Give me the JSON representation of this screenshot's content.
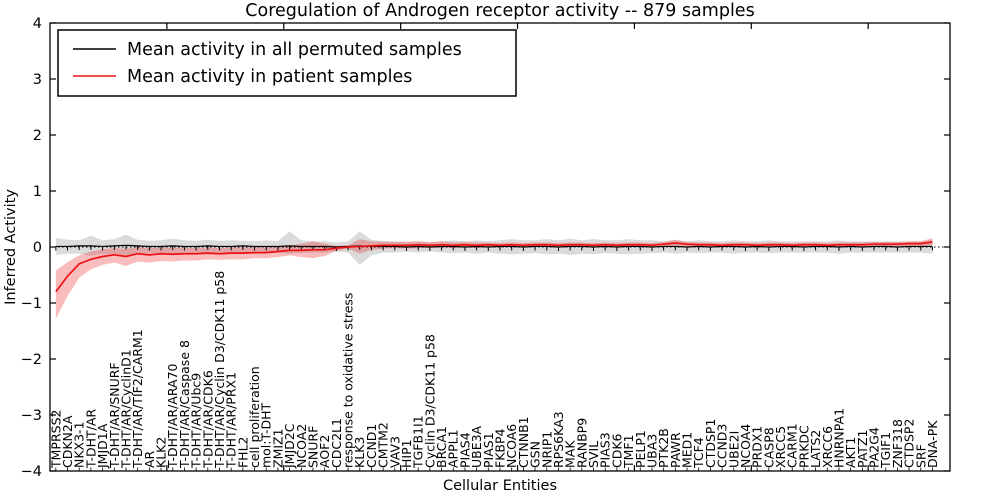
{
  "title": "Coregulation of Androgen receptor activity -- 879 samples",
  "axes": {
    "xlabel": "Cellular Entities",
    "ylabel": "Inferred Activity",
    "yticks": [
      4,
      3,
      2,
      1,
      0,
      -1,
      -2,
      -3,
      -4
    ],
    "ylim": [
      -4,
      4
    ]
  },
  "legend": {
    "entries": [
      {
        "label": "Mean activity in all permuted samples",
        "color": "#000000"
      },
      {
        "label": "Mean activity in patient samples",
        "color": "#ee1111"
      }
    ],
    "position": "upper left"
  },
  "chart_data": {
    "type": "line",
    "title": "Coregulation of Androgen receptor activity -- 879 samples",
    "xlabel": "Cellular Entities",
    "ylabel": "Inferred Activity",
    "ylim": [
      -4,
      4
    ],
    "grid": false,
    "zero_line_dotted": true,
    "legend_position": "upper left",
    "categories": [
      "TMPRSS2",
      "CDKN2A",
      "NKX3-1",
      "T-DHT/AR",
      "JMJD1A",
      "T-DHT/AR/SNURF",
      "T-DHT/AR/CyclinD1",
      "T-DHT/AR/TIF2/CARM1",
      "AR",
      "KLK2",
      "T-DHT/AR/ARA70",
      "T-DHT/AR/Caspase 8",
      "T-DHT/AR/Ubc9",
      "T-DHT/AR/CDK6",
      "T-DHT/AR/Cyclin D3/CDK11 p58",
      "T-DHT/AR/PRX1",
      "FHL2",
      "cell proliferation",
      "mol:T-DHT",
      "ZMIZ1",
      "JMJD2C",
      "NCOA2",
      "SNURF",
      "AOF2",
      "CDC2L1",
      "response to oxidative stress",
      "KLK3",
      "CCND1",
      "CMTM2",
      "VAV3",
      "HIP1",
      "TGFB1I1",
      "Cyclin D3/CDK11 p58",
      "BRCA1",
      "APPL1",
      "PIAS4",
      "UBE3A",
      "PIAS1",
      "FKBP4",
      "NCOA6",
      "CTNNB1",
      "GSN",
      "NRIP1",
      "RPS6KA3",
      "MAK",
      "RANBP9",
      "SVIL",
      "PIAS3",
      "CDK6",
      "TMF1",
      "PELP1",
      "UBA3",
      "PTK2B",
      "PAWR",
      "MED1",
      "TCF4",
      "CTDSP1",
      "CCND3",
      "UBE2I",
      "NCOA4",
      "PRDX1",
      "CASP8",
      "XRCC5",
      "CARM1",
      "PRKDC",
      "LATS2",
      "XRCC6",
      "HNRNPA1",
      "AKT1",
      "PATZ1",
      "PA2G4",
      "TGIF1",
      "ZNF318",
      "CTDSP2",
      "SRF",
      "DNA-PK"
    ],
    "series": [
      {
        "name": "Mean activity in all permuted samples",
        "color": "#000000",
        "band_color": "rgba(0,0,0,0.14)",
        "values": [
          0.01,
          0.01,
          0.02,
          0.02,
          0.01,
          0.02,
          0.03,
          0.02,
          0.01,
          0.01,
          0.02,
          0.01,
          0.01,
          0.02,
          0.01,
          0.01,
          0.02,
          0.01,
          0.01,
          0.01,
          0.02,
          0.01,
          0.01,
          0.01,
          0.0,
          0.01,
          0.02,
          0.01,
          0.01,
          0.01,
          0.0,
          0.01,
          0.0,
          0.01,
          0.01,
          0.0,
          0.01,
          0.0,
          0.01,
          0.01,
          0.0,
          0.01,
          0.01,
          0.0,
          0.01,
          0.01,
          0.0,
          0.01,
          0.0,
          0.01,
          0.01,
          0.0,
          0.01,
          0.01,
          0.0,
          0.01,
          0.0,
          0.01,
          0.01,
          0.0,
          0.01,
          0.0,
          0.01,
          0.01,
          0.0,
          0.01,
          0.01,
          0.0,
          0.01,
          0.0,
          0.01,
          0.01,
          0.0,
          0.01,
          0.01,
          0.01
        ],
        "band_upper": [
          0.16,
          0.13,
          0.12,
          0.2,
          0.12,
          0.14,
          0.22,
          0.13,
          0.11,
          0.12,
          0.15,
          0.12,
          0.11,
          0.13,
          0.11,
          0.12,
          0.11,
          0.1,
          0.12,
          0.1,
          0.28,
          0.12,
          0.1,
          0.1,
          0.08,
          0.1,
          0.28,
          0.13,
          0.1,
          0.1,
          0.08,
          0.1,
          0.08,
          0.1,
          0.12,
          0.1,
          0.12,
          0.1,
          0.12,
          0.14,
          0.12,
          0.12,
          0.14,
          0.12,
          0.15,
          0.12,
          0.14,
          0.12,
          0.12,
          0.14,
          0.12,
          0.12,
          0.1,
          0.12,
          0.1,
          0.12,
          0.1,
          0.1,
          0.12,
          0.1,
          0.1,
          0.12,
          0.1,
          0.1,
          0.1,
          0.1,
          0.1,
          0.12,
          0.1,
          0.1,
          0.1,
          0.1,
          0.1,
          0.1,
          0.1,
          0.13
        ],
        "band_lower": [
          -0.14,
          -0.12,
          -0.12,
          -0.16,
          -0.12,
          -0.13,
          -0.18,
          -0.12,
          -0.1,
          -0.12,
          -0.13,
          -0.12,
          -0.1,
          -0.12,
          -0.1,
          -0.12,
          -0.1,
          -0.1,
          -0.11,
          -0.1,
          -0.12,
          -0.1,
          -0.1,
          -0.1,
          -0.08,
          -0.1,
          -0.32,
          -0.15,
          -0.1,
          -0.1,
          -0.08,
          -0.1,
          -0.08,
          -0.1,
          -0.11,
          -0.1,
          -0.12,
          -0.1,
          -0.12,
          -0.13,
          -0.12,
          -0.11,
          -0.13,
          -0.12,
          -0.14,
          -0.12,
          -0.13,
          -0.11,
          -0.12,
          -0.13,
          -0.12,
          -0.11,
          -0.1,
          -0.12,
          -0.1,
          -0.11,
          -0.1,
          -0.1,
          -0.12,
          -0.1,
          -0.1,
          -0.11,
          -0.1,
          -0.1,
          -0.1,
          -0.1,
          -0.1,
          -0.12,
          -0.1,
          -0.1,
          -0.1,
          -0.1,
          -0.1,
          -0.1,
          -0.1,
          -0.12
        ]
      },
      {
        "name": "Mean activity in patient samples",
        "color": "#ee1111",
        "band_color": "rgba(238,17,17,0.28)",
        "values": [
          -0.8,
          -0.52,
          -0.3,
          -0.22,
          -0.17,
          -0.14,
          -0.17,
          -0.12,
          -0.14,
          -0.12,
          -0.13,
          -0.12,
          -0.12,
          -0.11,
          -0.12,
          -0.11,
          -0.11,
          -0.1,
          -0.1,
          -0.08,
          -0.06,
          -0.06,
          -0.05,
          -0.05,
          -0.02,
          0.0,
          0.01,
          0.02,
          0.03,
          0.03,
          0.03,
          0.04,
          0.03,
          0.04,
          0.03,
          0.04,
          0.03,
          0.04,
          0.03,
          0.04,
          0.03,
          0.04,
          0.04,
          0.03,
          0.04,
          0.04,
          0.03,
          0.04,
          0.03,
          0.04,
          0.04,
          0.03,
          0.05,
          0.07,
          0.05,
          0.04,
          0.04,
          0.03,
          0.04,
          0.04,
          0.03,
          0.04,
          0.04,
          0.03,
          0.04,
          0.04,
          0.03,
          0.04,
          0.04,
          0.04,
          0.05,
          0.05,
          0.05,
          0.06,
          0.06,
          0.09
        ],
        "band_upper": [
          -0.42,
          -0.27,
          -0.15,
          -0.08,
          -0.04,
          -0.02,
          -0.03,
          0.0,
          -0.02,
          -0.01,
          -0.02,
          -0.01,
          -0.02,
          -0.01,
          -0.02,
          -0.01,
          -0.01,
          0.0,
          -0.01,
          0.01,
          0.02,
          0.06,
          0.1,
          0.06,
          0.02,
          0.03,
          0.14,
          0.1,
          0.1,
          0.09,
          0.1,
          0.1,
          0.09,
          0.1,
          0.08,
          0.09,
          0.08,
          0.08,
          0.07,
          0.08,
          0.07,
          0.08,
          0.08,
          0.07,
          0.08,
          0.08,
          0.07,
          0.08,
          0.07,
          0.08,
          0.08,
          0.07,
          0.09,
          0.13,
          0.09,
          0.08,
          0.08,
          0.07,
          0.08,
          0.08,
          0.07,
          0.08,
          0.08,
          0.07,
          0.08,
          0.08,
          0.07,
          0.08,
          0.08,
          0.08,
          0.09,
          0.09,
          0.09,
          0.1,
          0.1,
          0.16
        ],
        "band_lower": [
          -1.28,
          -0.88,
          -0.55,
          -0.4,
          -0.32,
          -0.28,
          -0.34,
          -0.26,
          -0.28,
          -0.25,
          -0.26,
          -0.24,
          -0.24,
          -0.22,
          -0.23,
          -0.22,
          -0.22,
          -0.2,
          -0.2,
          -0.18,
          -0.15,
          -0.18,
          -0.2,
          -0.16,
          -0.07,
          -0.03,
          -0.12,
          -0.05,
          -0.03,
          -0.02,
          -0.03,
          -0.02,
          -0.02,
          -0.01,
          -0.02,
          -0.01,
          -0.02,
          0.0,
          -0.01,
          0.0,
          -0.01,
          0.0,
          0.0,
          -0.01,
          0.0,
          0.0,
          -0.01,
          0.0,
          -0.01,
          0.0,
          0.0,
          -0.01,
          0.01,
          0.02,
          0.01,
          0.0,
          0.0,
          -0.01,
          0.0,
          0.0,
          -0.01,
          0.0,
          0.0,
          -0.01,
          0.0,
          0.0,
          -0.01,
          0.0,
          0.0,
          0.0,
          0.01,
          0.01,
          0.01,
          0.02,
          0.02,
          0.03
        ]
      }
    ]
  }
}
